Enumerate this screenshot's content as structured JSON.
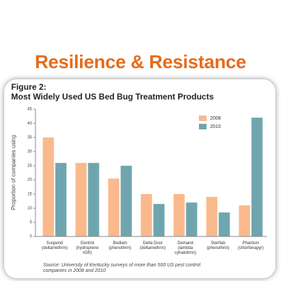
{
  "slide_title": "Resilience & Resistance",
  "chart_data": {
    "type": "bar",
    "figure_label": "Figure 2:",
    "title": "Most Widely Used US Bed Bug Treatment Products",
    "y_label": "Proportion of companies using",
    "source": "Source: University of Kentucky surveys of more than 500 US pest control companies in 2008 and 2010",
    "categories": [
      "Suspend (deltamethrin)",
      "Gentrol (hydroprene IGR)",
      "Bedlam (phenothrin)",
      "Delta Dust (deltamethrin)",
      "Demand (lambda cyhalothrin)",
      "Sterifab (phenothrin)",
      "Phantom (chlorfenapyr)"
    ],
    "series": [
      {
        "name": "2008",
        "color": "#f9b98c",
        "values": [
          35,
          26,
          20.5,
          15,
          15,
          14,
          11
        ]
      },
      {
        "name": "2010",
        "color": "#6ea5ae",
        "values": [
          26,
          26,
          25,
          11.5,
          12,
          8.5,
          42
        ]
      }
    ],
    "ylim": [
      0,
      45
    ],
    "yticks": [
      0,
      5,
      10,
      15,
      20,
      25,
      30,
      35,
      40,
      45
    ],
    "legend": "upper right"
  }
}
